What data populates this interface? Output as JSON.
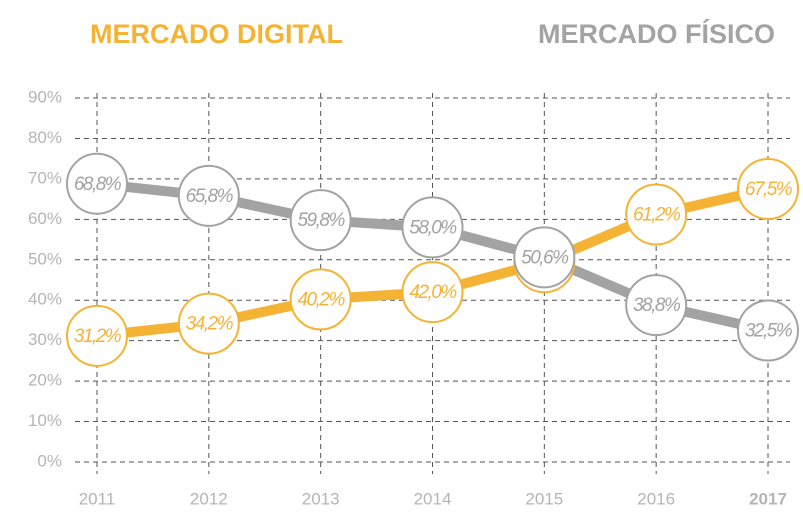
{
  "chart_data": {
    "type": "line",
    "categories": [
      "2011",
      "2012",
      "2013",
      "2014",
      "2015",
      "2016",
      "2017"
    ],
    "series": [
      {
        "name": "MERCADO DIGITAL",
        "color": "#f5b335",
        "values": [
          31.2,
          34.2,
          40.2,
          42.0,
          49.4,
          61.2,
          67.5
        ],
        "value_labels": [
          "31,2%",
          "34,2%",
          "40,2%",
          "42,0%",
          "49,4%",
          "61,2%",
          "67,5%"
        ]
      },
      {
        "name": "MERCADO FÍSICO",
        "color": "#a3a3a3",
        "values": [
          68.8,
          65.8,
          59.8,
          58.0,
          50.6,
          38.8,
          32.5
        ],
        "value_labels": [
          "68,8%",
          "65,8%",
          "59,8%",
          "58,0%",
          "50,6%",
          "38,8%",
          "32,5%"
        ]
      }
    ],
    "ylim": [
      0,
      90
    ],
    "yticks": [
      {
        "value": 0,
        "label": "0%"
      },
      {
        "value": 10,
        "label": "10%"
      },
      {
        "value": 20,
        "label": "20%"
      },
      {
        "value": 30,
        "label": "30%"
      },
      {
        "value": 40,
        "label": "40%"
      },
      {
        "value": 50,
        "label": "50%"
      },
      {
        "value": 60,
        "label": "60%"
      },
      {
        "value": 70,
        "label": "70%"
      },
      {
        "value": 80,
        "label": "80%"
      },
      {
        "value": 90,
        "label": "90%"
      }
    ],
    "grid": true
  }
}
